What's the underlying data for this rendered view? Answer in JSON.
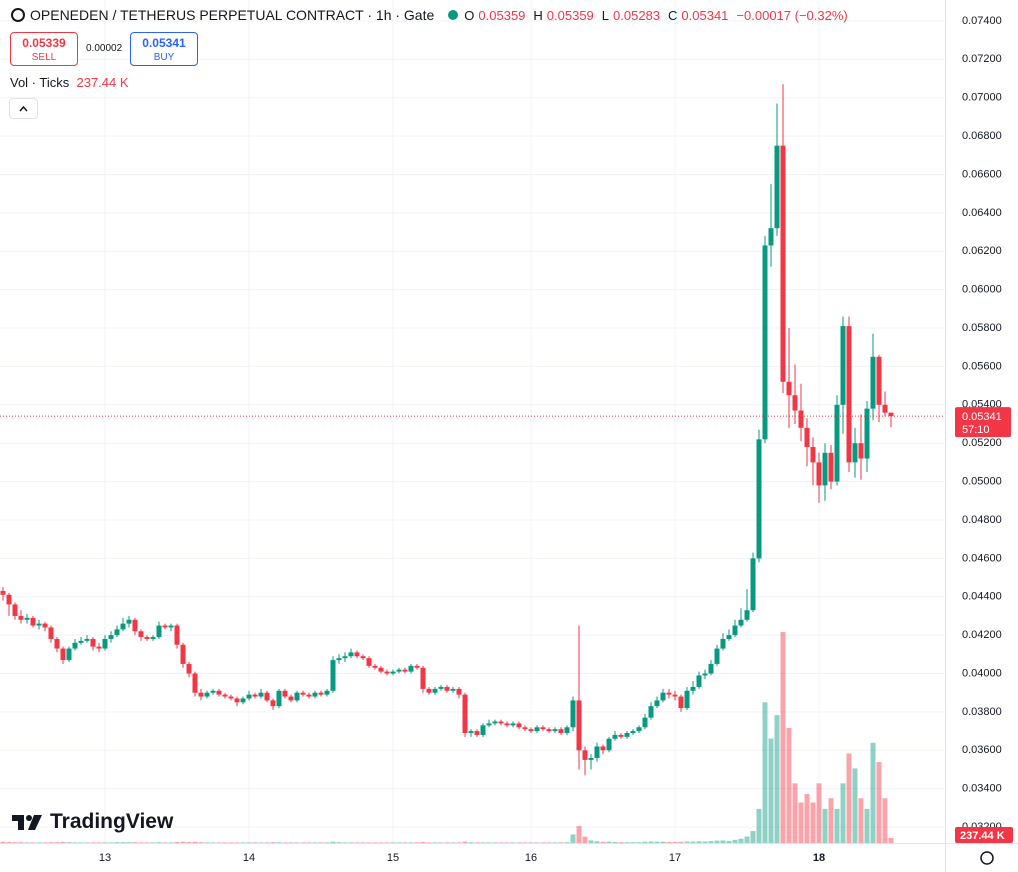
{
  "toolbar": {
    "title": "OPENEDEN / TETHERUS PERPETUAL CONTRACT · 1h · Gate",
    "o": "O",
    "h": "H",
    "l": "L",
    "c": "C",
    "change": "−0.00017 (−0.32%)",
    "sell_price": "0.05339",
    "sell": "SELL",
    "spread": "0.00002",
    "buy_price": "0.05341",
    "buy": "BUY",
    "vol_title": "Vol · Ticks",
    "logo": "TradingView"
  },
  "chart_data": {
    "type": "candlestick",
    "up_color": "#089981",
    "down_color": "#f23645",
    "grid": true,
    "countdown": "57:10",
    "volume_label": "237.44 K",
    "xlim": [
      -0.5,
      157
    ],
    "xticks": [
      {
        "value": 17,
        "label": "13"
      },
      {
        "value": 41,
        "label": "14"
      },
      {
        "value": 65,
        "label": "15"
      },
      {
        "value": 88,
        "label": "16"
      },
      {
        "value": 112,
        "label": "17"
      },
      {
        "value": 136,
        "label": "18"
      }
    ],
    "ylim": [
      0.03117,
      0.07509
    ],
    "yticks": [
      {
        "value": 0.032,
        "label": "0.03200"
      },
      {
        "value": 0.034,
        "label": "0.03400"
      },
      {
        "value": 0.036,
        "label": "0.03600"
      },
      {
        "value": 0.038,
        "label": "0.03800"
      },
      {
        "value": 0.04,
        "label": "0.04000"
      },
      {
        "value": 0.042,
        "label": "0.04200"
      },
      {
        "value": 0.044,
        "label": "0.04400"
      },
      {
        "value": 0.046,
        "label": "0.04600"
      },
      {
        "value": 0.048,
        "label": "0.04800"
      },
      {
        "value": 0.05,
        "label": "0.05000"
      },
      {
        "value": 0.052,
        "label": "0.05200"
      },
      {
        "value": 0.054,
        "label": "0.05400"
      },
      {
        "value": 0.056,
        "label": "0.05600"
      },
      {
        "value": 0.058,
        "label": "0.05800"
      },
      {
        "value": 0.06,
        "label": "0.06000"
      },
      {
        "value": 0.062,
        "label": "0.06200"
      },
      {
        "value": 0.064,
        "label": "0.06400"
      },
      {
        "value": 0.066,
        "label": "0.06600"
      },
      {
        "value": 0.068,
        "label": "0.06800"
      },
      {
        "value": 0.07,
        "label": "0.07000"
      },
      {
        "value": 0.072,
        "label": "0.07200"
      },
      {
        "value": 0.074,
        "label": "0.07400"
      }
    ],
    "candles": [
      [
        0.0443,
        0.0445,
        0.0438,
        0.0441,
        60000
      ],
      [
        0.0441,
        0.0442,
        0.043,
        0.0436,
        50000
      ],
      [
        0.0436,
        0.0437,
        0.0428,
        0.043,
        40000
      ],
      [
        0.043,
        0.0433,
        0.0426,
        0.0428,
        40000
      ],
      [
        0.0428,
        0.0431,
        0.0426,
        0.0429,
        30000
      ],
      [
        0.0429,
        0.043,
        0.0424,
        0.0425,
        30000
      ],
      [
        0.0425,
        0.0428,
        0.0423,
        0.0426,
        30000
      ],
      [
        0.0426,
        0.0427,
        0.0422,
        0.0424,
        30000
      ],
      [
        0.0424,
        0.0425,
        0.0416,
        0.0418,
        40000
      ],
      [
        0.0418,
        0.0419,
        0.0411,
        0.0413,
        40000
      ],
      [
        0.0413,
        0.0414,
        0.0405,
        0.0407,
        50000
      ],
      [
        0.0407,
        0.0414,
        0.0406,
        0.0413,
        40000
      ],
      [
        0.0413,
        0.0418,
        0.0412,
        0.0416,
        30000
      ],
      [
        0.0416,
        0.0419,
        0.0415,
        0.0417,
        30000
      ],
      [
        0.0417,
        0.042,
        0.0416,
        0.0418,
        30000
      ],
      [
        0.0418,
        0.0419,
        0.0412,
        0.0414,
        30000
      ],
      [
        0.0414,
        0.0416,
        0.0411,
        0.0413,
        30000
      ],
      [
        0.0413,
        0.042,
        0.0412,
        0.0418,
        30000
      ],
      [
        0.0418,
        0.0422,
        0.0416,
        0.042,
        30000
      ],
      [
        0.042,
        0.0425,
        0.0419,
        0.0423,
        40000
      ],
      [
        0.0423,
        0.0429,
        0.0422,
        0.0426,
        40000
      ],
      [
        0.0426,
        0.043,
        0.0424,
        0.0428,
        40000
      ],
      [
        0.0428,
        0.0429,
        0.042,
        0.0422,
        40000
      ],
      [
        0.0422,
        0.0423,
        0.0417,
        0.0419,
        30000
      ],
      [
        0.0419,
        0.042,
        0.0417,
        0.0418,
        30000
      ],
      [
        0.0418,
        0.042,
        0.0417,
        0.0419,
        30000
      ],
      [
        0.0419,
        0.0427,
        0.0418,
        0.0425,
        40000
      ],
      [
        0.0425,
        0.0426,
        0.0423,
        0.0424,
        30000
      ],
      [
        0.0424,
        0.0426,
        0.0422,
        0.0425,
        30000
      ],
      [
        0.0425,
        0.0426,
        0.0413,
        0.0415,
        50000
      ],
      [
        0.0415,
        0.0416,
        0.0403,
        0.0405,
        60000
      ],
      [
        0.0405,
        0.0406,
        0.0398,
        0.04,
        50000
      ],
      [
        0.04,
        0.0401,
        0.0388,
        0.039,
        60000
      ],
      [
        0.039,
        0.0392,
        0.0386,
        0.0388,
        40000
      ],
      [
        0.0388,
        0.0391,
        0.0387,
        0.039,
        30000
      ],
      [
        0.039,
        0.0392,
        0.0389,
        0.0391,
        30000
      ],
      [
        0.0391,
        0.0392,
        0.0388,
        0.0389,
        30000
      ],
      [
        0.0389,
        0.039,
        0.0387,
        0.0388,
        30000
      ],
      [
        0.0388,
        0.0389,
        0.0386,
        0.0387,
        30000
      ],
      [
        0.0387,
        0.0388,
        0.0383,
        0.0385,
        30000
      ],
      [
        0.0385,
        0.0388,
        0.0384,
        0.0387,
        30000
      ],
      [
        0.0387,
        0.0391,
        0.0386,
        0.0389,
        30000
      ],
      [
        0.0389,
        0.039,
        0.0387,
        0.0388,
        30000
      ],
      [
        0.0388,
        0.0392,
        0.0387,
        0.039,
        30000
      ],
      [
        0.039,
        0.0391,
        0.0385,
        0.0386,
        30000
      ],
      [
        0.0386,
        0.0387,
        0.0381,
        0.0383,
        40000
      ],
      [
        0.0383,
        0.0392,
        0.0382,
        0.0391,
        40000
      ],
      [
        0.0391,
        0.0392,
        0.0387,
        0.0388,
        30000
      ],
      [
        0.0388,
        0.0389,
        0.0385,
        0.0386,
        30000
      ],
      [
        0.0386,
        0.0391,
        0.0385,
        0.039,
        30000
      ],
      [
        0.039,
        0.0391,
        0.0388,
        0.0389,
        30000
      ],
      [
        0.0389,
        0.039,
        0.0387,
        0.0388,
        30000
      ],
      [
        0.0388,
        0.0391,
        0.0387,
        0.039,
        30000
      ],
      [
        0.039,
        0.0391,
        0.0388,
        0.0389,
        30000
      ],
      [
        0.0389,
        0.0392,
        0.0388,
        0.0391,
        30000
      ],
      [
        0.0391,
        0.0409,
        0.039,
        0.0407,
        60000
      ],
      [
        0.0407,
        0.041,
        0.0405,
        0.0408,
        40000
      ],
      [
        0.0408,
        0.0411,
        0.0406,
        0.0409,
        30000
      ],
      [
        0.0409,
        0.0413,
        0.0408,
        0.0411,
        30000
      ],
      [
        0.0411,
        0.0412,
        0.0408,
        0.0409,
        30000
      ],
      [
        0.0409,
        0.041,
        0.0407,
        0.0408,
        30000
      ],
      [
        0.0408,
        0.0409,
        0.0403,
        0.0404,
        30000
      ],
      [
        0.0404,
        0.0405,
        0.0402,
        0.0403,
        30000
      ],
      [
        0.0403,
        0.0404,
        0.04,
        0.0401,
        30000
      ],
      [
        0.0401,
        0.0402,
        0.0399,
        0.04,
        30000
      ],
      [
        0.04,
        0.0402,
        0.0399,
        0.0401,
        30000
      ],
      [
        0.0401,
        0.0403,
        0.04,
        0.0402,
        30000
      ],
      [
        0.0402,
        0.0403,
        0.04,
        0.0401,
        30000
      ],
      [
        0.0401,
        0.0405,
        0.04,
        0.0404,
        30000
      ],
      [
        0.0404,
        0.0405,
        0.0402,
        0.0403,
        30000
      ],
      [
        0.0403,
        0.0404,
        0.039,
        0.0392,
        50000
      ],
      [
        0.0392,
        0.0393,
        0.0389,
        0.039,
        30000
      ],
      [
        0.039,
        0.0393,
        0.0389,
        0.0392,
        30000
      ],
      [
        0.0392,
        0.0394,
        0.0391,
        0.0393,
        30000
      ],
      [
        0.0393,
        0.0394,
        0.039,
        0.0391,
        30000
      ],
      [
        0.0391,
        0.0393,
        0.039,
        0.0392,
        30000
      ],
      [
        0.0392,
        0.0393,
        0.0387,
        0.0389,
        30000
      ],
      [
        0.0389,
        0.039,
        0.0367,
        0.0369,
        70000
      ],
      [
        0.0369,
        0.0371,
        0.0367,
        0.037,
        40000
      ],
      [
        0.037,
        0.0371,
        0.0367,
        0.0368,
        30000
      ],
      [
        0.0368,
        0.0374,
        0.0367,
        0.0373,
        30000
      ],
      [
        0.0373,
        0.0376,
        0.0372,
        0.0374,
        30000
      ],
      [
        0.0374,
        0.0376,
        0.0373,
        0.0375,
        30000
      ],
      [
        0.0375,
        0.0376,
        0.0373,
        0.0374,
        30000
      ],
      [
        0.0374,
        0.0375,
        0.0372,
        0.0373,
        30000
      ],
      [
        0.0373,
        0.0375,
        0.0372,
        0.0374,
        30000
      ],
      [
        0.0374,
        0.0375,
        0.0371,
        0.0372,
        30000
      ],
      [
        0.0372,
        0.0373,
        0.037,
        0.0371,
        30000
      ],
      [
        0.0371,
        0.0372,
        0.0369,
        0.037,
        30000
      ],
      [
        0.037,
        0.0373,
        0.0369,
        0.0372,
        30000
      ],
      [
        0.0372,
        0.0373,
        0.037,
        0.0371,
        30000
      ],
      [
        0.0371,
        0.0372,
        0.0369,
        0.037,
        30000
      ],
      [
        0.037,
        0.0372,
        0.0369,
        0.0371,
        30000
      ],
      [
        0.0371,
        0.0372,
        0.0368,
        0.0369,
        30000
      ],
      [
        0.0369,
        0.0373,
        0.0368,
        0.0372,
        40000
      ],
      [
        0.0372,
        0.0388,
        0.037,
        0.0386,
        400000
      ],
      [
        0.0386,
        0.0425,
        0.035,
        0.036,
        800000
      ],
      [
        0.036,
        0.0362,
        0.0347,
        0.0355,
        300000
      ],
      [
        0.0355,
        0.0358,
        0.035,
        0.0356,
        120000
      ],
      [
        0.0356,
        0.0364,
        0.0354,
        0.0362,
        80000
      ],
      [
        0.0362,
        0.0363,
        0.0358,
        0.036,
        60000
      ],
      [
        0.036,
        0.0367,
        0.0359,
        0.0366,
        60000
      ],
      [
        0.0366,
        0.037,
        0.0365,
        0.0368,
        50000
      ],
      [
        0.0368,
        0.0369,
        0.0366,
        0.0367,
        40000
      ],
      [
        0.0367,
        0.037,
        0.0366,
        0.0369,
        40000
      ],
      [
        0.0369,
        0.0371,
        0.0368,
        0.037,
        40000
      ],
      [
        0.037,
        0.0373,
        0.0369,
        0.0372,
        40000
      ],
      [
        0.0372,
        0.0379,
        0.0371,
        0.0377,
        60000
      ],
      [
        0.0377,
        0.0385,
        0.0376,
        0.0383,
        70000
      ],
      [
        0.0383,
        0.0388,
        0.0382,
        0.0386,
        60000
      ],
      [
        0.0386,
        0.0392,
        0.0385,
        0.039,
        60000
      ],
      [
        0.039,
        0.0392,
        0.0387,
        0.0389,
        50000
      ],
      [
        0.0389,
        0.0391,
        0.0386,
        0.0388,
        50000
      ],
      [
        0.0388,
        0.0389,
        0.038,
        0.0382,
        60000
      ],
      [
        0.0382,
        0.0393,
        0.0381,
        0.0391,
        70000
      ],
      [
        0.0391,
        0.0396,
        0.0389,
        0.0393,
        70000
      ],
      [
        0.0393,
        0.0401,
        0.0392,
        0.0399,
        80000
      ],
      [
        0.0399,
        0.0402,
        0.0397,
        0.04,
        70000
      ],
      [
        0.04,
        0.0407,
        0.0399,
        0.0405,
        90000
      ],
      [
        0.0405,
        0.0415,
        0.0404,
        0.0413,
        110000
      ],
      [
        0.0413,
        0.0421,
        0.0412,
        0.0418,
        120000
      ],
      [
        0.0418,
        0.0423,
        0.0417,
        0.042,
        100000
      ],
      [
        0.042,
        0.0428,
        0.0419,
        0.0425,
        150000
      ],
      [
        0.0425,
        0.0434,
        0.0424,
        0.0428,
        200000
      ],
      [
        0.0428,
        0.0444,
        0.0427,
        0.0433,
        300000
      ],
      [
        0.0433,
        0.0463,
        0.0432,
        0.046,
        560000
      ],
      [
        0.046,
        0.0527,
        0.0458,
        0.0522,
        1600000
      ],
      [
        0.0522,
        0.0628,
        0.052,
        0.0623,
        6600000
      ],
      [
        0.0623,
        0.0655,
        0.0612,
        0.0632,
        4900000
      ],
      [
        0.0632,
        0.0697,
        0.0628,
        0.0675,
        6000000
      ],
      [
        0.0675,
        0.0707,
        0.0546,
        0.0552,
        9900000
      ],
      [
        0.0552,
        0.058,
        0.0528,
        0.0545,
        5400000
      ],
      [
        0.0545,
        0.0561,
        0.053,
        0.0537,
        2800000
      ],
      [
        0.0537,
        0.0551,
        0.0521,
        0.0528,
        1900000
      ],
      [
        0.0528,
        0.0533,
        0.0508,
        0.0518,
        2300000
      ],
      [
        0.0518,
        0.0523,
        0.0498,
        0.051,
        1900000
      ],
      [
        0.051,
        0.0515,
        0.0489,
        0.0498,
        2800000
      ],
      [
        0.0498,
        0.052,
        0.049,
        0.0515,
        1600000
      ],
      [
        0.0515,
        0.0519,
        0.0496,
        0.05,
        2100000
      ],
      [
        0.05,
        0.0545,
        0.0498,
        0.054,
        1600000
      ],
      [
        0.054,
        0.0586,
        0.0525,
        0.0581,
        2800000
      ],
      [
        0.0581,
        0.0586,
        0.0505,
        0.051,
        4200000
      ],
      [
        0.051,
        0.0528,
        0.0502,
        0.052,
        3500000
      ],
      [
        0.052,
        0.0535,
        0.0501,
        0.0512,
        2100000
      ],
      [
        0.0512,
        0.0542,
        0.0505,
        0.0538,
        1600000
      ],
      [
        0.0538,
        0.0577,
        0.0532,
        0.0565,
        4700000
      ],
      [
        0.0565,
        0.0566,
        0.0531,
        0.054,
        3800000
      ],
      [
        0.054,
        0.0547,
        0.0534,
        0.05359,
        2100000
      ],
      [
        0.05359,
        0.05359,
        0.05283,
        0.05341,
        237440
      ]
    ]
  }
}
